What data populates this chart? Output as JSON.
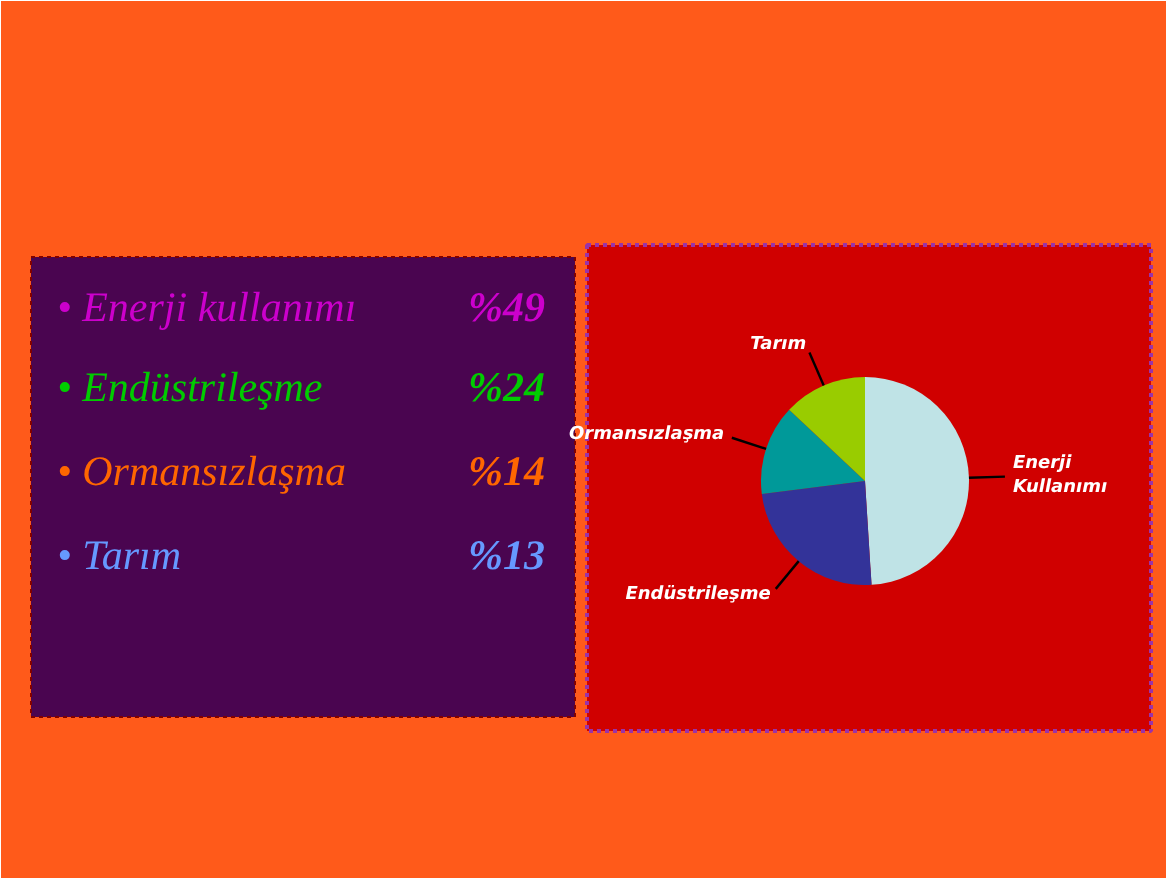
{
  "chart_data": [
    {
      "type": "other",
      "annotations": [
        "• Enerji kullanımı",
        "%49",
        "• Endüstrileşme",
        "%24",
        "• Ormansızlaşma",
        "%14",
        "• Tarım",
        "%13"
      ],
      "colors": [
        "#cc00cc",
        "#00cc00",
        "#ff6600",
        "#6699ff"
      ]
    },
    {
      "type": "pie",
      "categories": [
        "Enerji Kullanımı",
        "Endüstrileşme",
        "Ormansızlaşma",
        "Tarım"
      ],
      "values": [
        49,
        24,
        14,
        13
      ],
      "colors": [
        "#bfe3e6",
        "#333399",
        "#009999",
        "#99cc00"
      ]
    }
  ]
}
